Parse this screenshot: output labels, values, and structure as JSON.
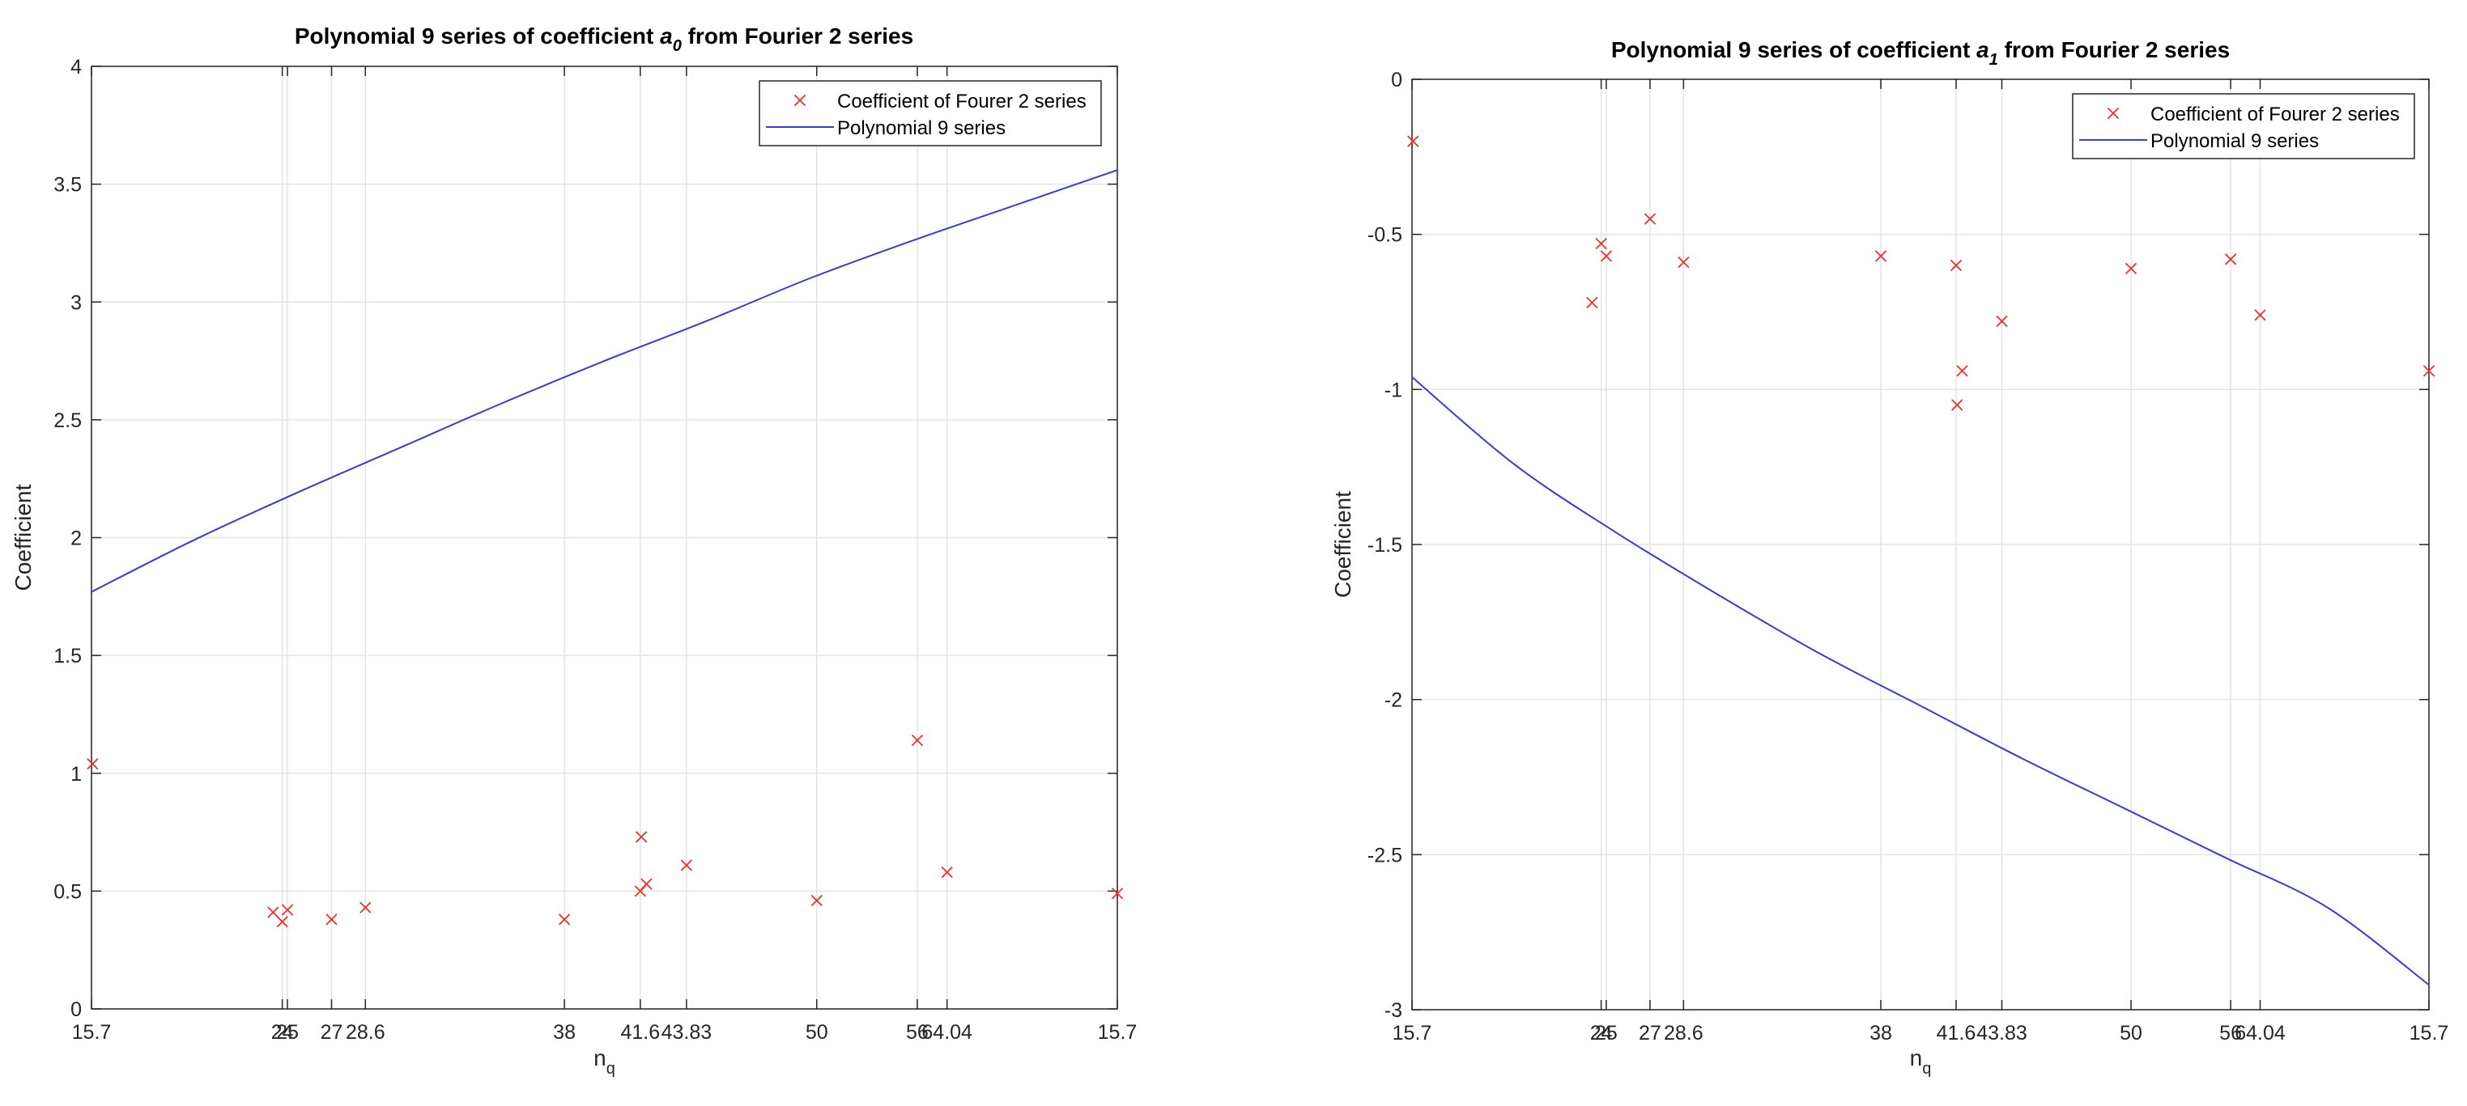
{
  "figure": {
    "colors": {
      "marker": "#e8322b",
      "line": "#3a3ad6",
      "axis": "#262626",
      "grid": "#e4e4e4",
      "background": "#ffffff"
    }
  },
  "chart_data": [
    {
      "type": "scatter",
      "title_main": "Polynomial 9 series of coefficient ",
      "title_var": "a",
      "title_sub": "0",
      "title_tail": "  from Fourier 2 series",
      "xlabel_main": "n",
      "xlabel_sub": "q",
      "ylabel": "Coefficient",
      "xlim": [
        0,
        100
      ],
      "ylim": [
        0,
        4
      ],
      "yticks": [
        "0",
        "0.5",
        "1",
        "1.5",
        "2",
        "2.5",
        "3",
        "3.5",
        "4"
      ],
      "ytick_values": [
        0,
        0.5,
        1,
        1.5,
        2,
        2.5,
        3,
        3.5,
        4
      ],
      "xticks": [
        {
          "label": "15.7",
          "pos": 0
        },
        {
          "label": "24",
          "pos": 18.6
        },
        {
          "label": "25",
          "pos": 19.1
        },
        {
          "label": "27",
          "pos": 23.4
        },
        {
          "label": "28.6",
          "pos": 26.7
        },
        {
          "label": "38",
          "pos": 46.1
        },
        {
          "label": "41.6",
          "pos": 53.5
        },
        {
          "label": "43.83",
          "pos": 58.0
        },
        {
          "label": "50",
          "pos": 70.7
        },
        {
          "label": "56",
          "pos": 80.5
        },
        {
          "label": "64.04",
          "pos": 83.4
        },
        {
          "label": "15.7",
          "pos": 100
        }
      ],
      "legend": {
        "position": "top-right",
        "entries": [
          "Coefficient of Fourer 2 series",
          "Polynomial 9 series"
        ]
      },
      "series": [
        {
          "name": "Coefficient of Fourer 2 series",
          "kind": "markers",
          "points": [
            [
              0.1,
              1.04
            ],
            [
              17.7,
              0.41
            ],
            [
              18.6,
              0.37
            ],
            [
              19.1,
              0.42
            ],
            [
              23.4,
              0.38
            ],
            [
              26.7,
              0.43
            ],
            [
              46.1,
              0.38
            ],
            [
              53.5,
              0.5
            ],
            [
              53.6,
              0.73
            ],
            [
              54.1,
              0.53
            ],
            [
              58.0,
              0.61
            ],
            [
              70.7,
              0.46
            ],
            [
              80.5,
              1.14
            ],
            [
              83.4,
              0.58
            ],
            [
              100,
              0.49
            ]
          ]
        },
        {
          "name": "Polynomial 9 series",
          "kind": "line",
          "points": [
            [
              0,
              1.77
            ],
            [
              10,
              1.99
            ],
            [
              20,
              2.19
            ],
            [
              30,
              2.38
            ],
            [
              40,
              2.57
            ],
            [
              50,
              2.75
            ],
            [
              60,
              2.92
            ],
            [
              70,
              3.1
            ],
            [
              80,
              3.26
            ],
            [
              90,
              3.41
            ],
            [
              100,
              3.56
            ]
          ]
        }
      ]
    },
    {
      "type": "scatter",
      "title_main": "Polynomial 9 series of coefficient ",
      "title_var": "a",
      "title_sub": "1",
      "title_tail": "  from Fourier 2 series",
      "xlabel_main": "n",
      "xlabel_sub": "q",
      "ylabel": "Coefficient",
      "xlim": [
        0,
        100
      ],
      "ylim": [
        -3,
        0
      ],
      "yticks": [
        "-3",
        "-2.5",
        "-2",
        "-1.5",
        "-1",
        "-0.5",
        "0"
      ],
      "ytick_values": [
        -3,
        -2.5,
        -2,
        -1.5,
        -1,
        -0.5,
        0
      ],
      "xticks": [
        {
          "label": "15.7",
          "pos": 0
        },
        {
          "label": "24",
          "pos": 18.6
        },
        {
          "label": "25",
          "pos": 19.1
        },
        {
          "label": "27",
          "pos": 23.4
        },
        {
          "label": "28.6",
          "pos": 26.7
        },
        {
          "label": "38",
          "pos": 46.1
        },
        {
          "label": "41.6",
          "pos": 53.5
        },
        {
          "label": "43.83",
          "pos": 58.0
        },
        {
          "label": "50",
          "pos": 70.7
        },
        {
          "label": "56",
          "pos": 80.5
        },
        {
          "label": "64.04",
          "pos": 83.4
        },
        {
          "label": "15.7",
          "pos": 100
        }
      ],
      "legend": {
        "position": "top-right",
        "entries": [
          "Coefficient of Fourer 2 series",
          "Polynomial 9 series"
        ]
      },
      "series": [
        {
          "name": "Coefficient of Fourer 2 series",
          "kind": "markers",
          "points": [
            [
              0.1,
              -0.2
            ],
            [
              17.7,
              -0.72
            ],
            [
              18.6,
              -0.53
            ],
            [
              19.1,
              -0.57
            ],
            [
              23.4,
              -0.45
            ],
            [
              26.7,
              -0.59
            ],
            [
              46.1,
              -0.57
            ],
            [
              53.5,
              -0.6
            ],
            [
              53.6,
              -1.05
            ],
            [
              54.1,
              -0.94
            ],
            [
              58.0,
              -0.78
            ],
            [
              70.7,
              -0.61
            ],
            [
              80.5,
              -0.58
            ],
            [
              83.4,
              -0.76
            ],
            [
              100,
              -0.94
            ]
          ]
        },
        {
          "name": "Polynomial 9 series",
          "kind": "line",
          "points": [
            [
              0,
              -0.96
            ],
            [
              10,
              -1.24
            ],
            [
              20,
              -1.46
            ],
            [
              30,
              -1.66
            ],
            [
              40,
              -1.85
            ],
            [
              50,
              -2.02
            ],
            [
              60,
              -2.19
            ],
            [
              70,
              -2.35
            ],
            [
              80,
              -2.51
            ],
            [
              90,
              -2.67
            ],
            [
              100,
              -2.92
            ]
          ]
        }
      ]
    }
  ]
}
